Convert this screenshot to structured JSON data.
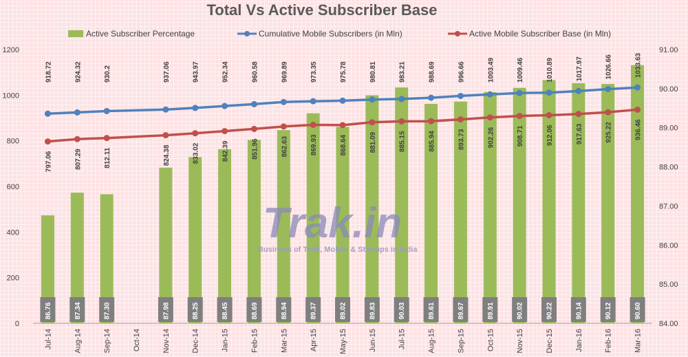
{
  "chart_data": {
    "type": "bar",
    "title": "Total Vs Active Subscriber Base",
    "categories": [
      "Jul-14",
      "Aug-14",
      "Sep-14",
      "Oct-14",
      "Nov-14",
      "Dec-14",
      "Jan-15",
      "Feb-15",
      "Mar-15",
      "Apr-15",
      "May-15",
      "Jun-15",
      "Jul-15",
      "Aug-15",
      "Sep-15",
      "Oct-15",
      "Nov-15",
      "Dec-15",
      "Jan-16",
      "Feb-16",
      "Mar-16"
    ],
    "series": [
      {
        "name": "Active Subscriber Percentage",
        "type": "bar",
        "axis": "right",
        "color": "#9bbb59",
        "values": [
          86.76,
          87.34,
          87.3,
          null,
          87.98,
          88.25,
          88.45,
          88.69,
          88.94,
          89.37,
          89.02,
          89.83,
          90.03,
          89.61,
          89.67,
          89.91,
          90.02,
          90.22,
          90.14,
          90.12,
          90.6
        ],
        "labels": [
          "86.76",
          "87.34",
          "87.30",
          "",
          "87.98",
          "88.25",
          "88.45",
          "88.69",
          "88.94",
          "89.37",
          "89.02",
          "89.83",
          "90.03",
          "89.61",
          "89.67",
          "89.91",
          "90.02",
          "90.22",
          "90.14",
          "90.12",
          "90.60"
        ]
      },
      {
        "name": "Cumulative Mobile Subscribers (in Mln)",
        "type": "line",
        "axis": "left",
        "color": "#4f81bd",
        "values": [
          918.72,
          924.32,
          930.2,
          null,
          937.06,
          943.97,
          952.34,
          960.58,
          969.89,
          973.35,
          975.78,
          980.81,
          983.21,
          988.69,
          996.66,
          1003.49,
          1009.46,
          1010.89,
          1017.97,
          1026.66,
          1033.63
        ],
        "labels": [
          "918.72",
          "924.32",
          "930.2",
          "",
          "937.06",
          "943.97",
          "952.34",
          "960.58",
          "969.89",
          "973.35",
          "975.78",
          "980.81",
          "983.21",
          "988.69",
          "996.66",
          "1003.49",
          "1009.46",
          "1010.89",
          "1017.97",
          "1026.66",
          "1033.63"
        ]
      },
      {
        "name": "Active Mobile Subscriber Base (in Mln)",
        "type": "line",
        "axis": "left",
        "color": "#c0504d",
        "values": [
          797.06,
          807.29,
          812.11,
          null,
          824.38,
          833.02,
          842.39,
          851.96,
          862.63,
          869.93,
          868.64,
          881.09,
          885.15,
          885.94,
          893.73,
          902.26,
          908.71,
          912.06,
          917.63,
          925.22,
          936.46
        ],
        "labels": [
          "797.06",
          "807.29",
          "812.11",
          "",
          "824.38",
          "833.02",
          "842.39",
          "851.96",
          "862.63",
          "869.93",
          "868.64",
          "881.09",
          "885.15",
          "885.94",
          "893.73",
          "902.26",
          "908.71",
          "912.06",
          "917.63",
          "925.22",
          "936.46"
        ]
      }
    ],
    "y_left": {
      "ylim": [
        0,
        1200
      ],
      "ticks": [
        "0",
        "200",
        "400",
        "600",
        "800",
        "1000",
        "1200"
      ]
    },
    "y_right": {
      "ylim": [
        84.0,
        91.0
      ],
      "ticks": [
        "84.00",
        "85.00",
        "86.00",
        "87.00",
        "88.00",
        "89.00",
        "90.00",
        "91.00"
      ]
    },
    "legend": "top",
    "grid": false
  },
  "watermark": {
    "name": "Trak.in",
    "tagline": "Business of Tech, Mobile & Startups in India"
  }
}
